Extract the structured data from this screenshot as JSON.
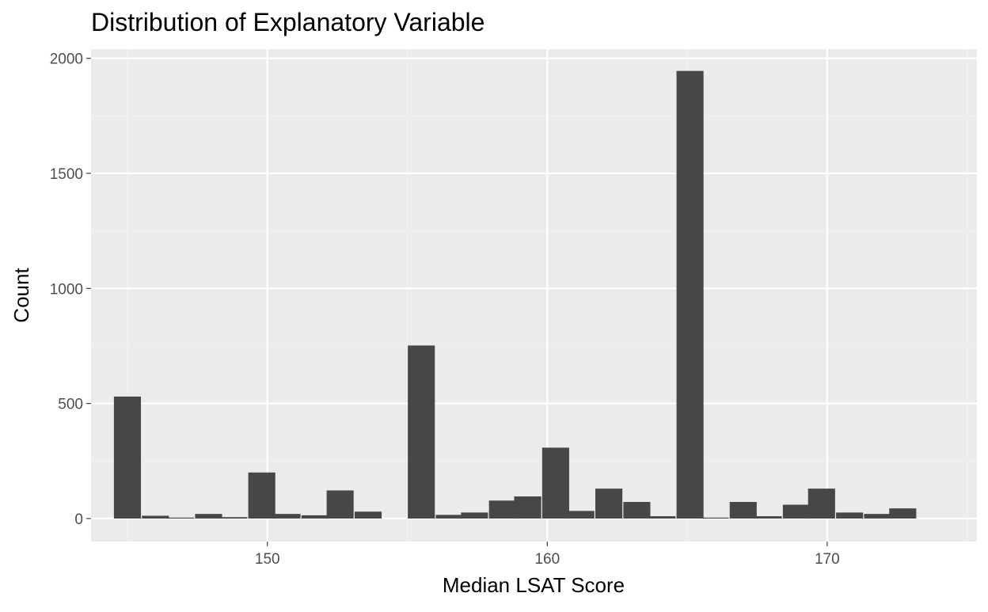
{
  "chart_data": {
    "type": "bar",
    "title": "Distribution of Explanatory Variable",
    "xlabel": "Median LSAT Score",
    "ylabel": "Count",
    "xlim": [
      143.7,
      175.35
    ],
    "ylim": [
      -100,
      2040
    ],
    "x_ticks": [
      150,
      160,
      170
    ],
    "y_ticks": [
      0,
      500,
      1000,
      1500,
      2000
    ],
    "grid": true,
    "bin_width": 0.965,
    "bar_color": "#474747",
    "panel_color": "#ebebeb",
    "bins": [
      {
        "x": 145.0,
        "count": 530
      },
      {
        "x": 146.0,
        "count": 12
      },
      {
        "x": 146.9,
        "count": 4
      },
      {
        "x": 147.9,
        "count": 20
      },
      {
        "x": 148.8,
        "count": 6
      },
      {
        "x": 149.8,
        "count": 200
      },
      {
        "x": 150.7,
        "count": 20
      },
      {
        "x": 151.7,
        "count": 14
      },
      {
        "x": 152.6,
        "count": 122
      },
      {
        "x": 153.6,
        "count": 30
      },
      {
        "x": 154.6,
        "count": 0
      },
      {
        "x": 155.5,
        "count": 752
      },
      {
        "x": 156.5,
        "count": 16
      },
      {
        "x": 157.4,
        "count": 26
      },
      {
        "x": 158.4,
        "count": 78
      },
      {
        "x": 159.3,
        "count": 96
      },
      {
        "x": 160.3,
        "count": 308
      },
      {
        "x": 161.2,
        "count": 33
      },
      {
        "x": 162.2,
        "count": 130
      },
      {
        "x": 163.2,
        "count": 72
      },
      {
        "x": 164.1,
        "count": 10
      },
      {
        "x": 165.1,
        "count": 1945
      },
      {
        "x": 166.0,
        "count": 4
      },
      {
        "x": 167.0,
        "count": 72
      },
      {
        "x": 167.9,
        "count": 10
      },
      {
        "x": 168.9,
        "count": 60
      },
      {
        "x": 169.8,
        "count": 130
      },
      {
        "x": 170.8,
        "count": 26
      },
      {
        "x": 171.8,
        "count": 20
      },
      {
        "x": 172.7,
        "count": 44
      }
    ]
  }
}
